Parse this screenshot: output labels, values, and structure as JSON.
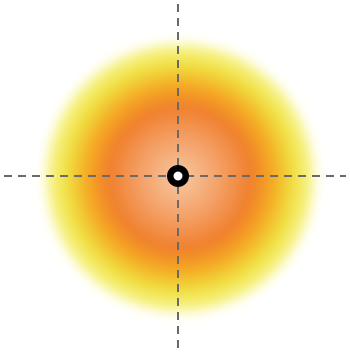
{
  "diagram": {
    "background": "#ffffff",
    "glow_colors": {
      "core": "#f6c9a4",
      "inner": "#f4a066",
      "mid": "#f07f2c",
      "outer_orange": "#f5a623",
      "yellow": "#f0e040",
      "edge": "#f7f48a"
    },
    "crosshair_color": "#6a6a6a",
    "center_marker": {
      "ring_color": "#000000",
      "dot_color": "#ffffff"
    }
  }
}
